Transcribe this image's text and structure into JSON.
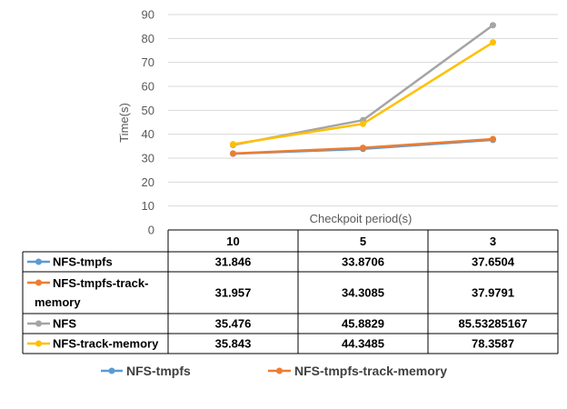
{
  "chart_data": {
    "type": "line",
    "title": "",
    "xlabel": "Checkpoit period(s)",
    "ylabel": "Time(s)",
    "ylim": [
      0,
      90
    ],
    "yticks": [
      0,
      10,
      20,
      30,
      40,
      50,
      60,
      70,
      80,
      90
    ],
    "categories": [
      "10",
      "5",
      "3"
    ],
    "grid": "horizontal",
    "data_table": true,
    "legend": "bottom",
    "series": [
      {
        "name": "NFS-tmpfs",
        "color": "#5B9BD5",
        "values": [
          31.846,
          33.8706,
          37.6504
        ],
        "labels": [
          "31.846",
          "33.8706",
          "37.6504"
        ]
      },
      {
        "name": "NFS-tmpfs-track-memory",
        "color": "#ED7D31",
        "values": [
          31.957,
          34.3085,
          37.9791
        ],
        "labels": [
          "31.957",
          "34.3085",
          "37.9791"
        ]
      },
      {
        "name": "NFS",
        "color": "#A5A5A5",
        "values": [
          35.476,
          45.8829,
          85.53285167
        ],
        "labels": [
          "35.476",
          "45.8829",
          "85.53285167"
        ]
      },
      {
        "name": "NFS-track-memory",
        "color": "#FFC000",
        "values": [
          35.843,
          44.3485,
          78.3587
        ],
        "labels": [
          "35.843",
          "44.3485",
          "78.3587"
        ]
      }
    ],
    "legend_entries": [
      "NFS-tmpfs",
      "NFS-tmpfs-track-memory"
    ]
  }
}
